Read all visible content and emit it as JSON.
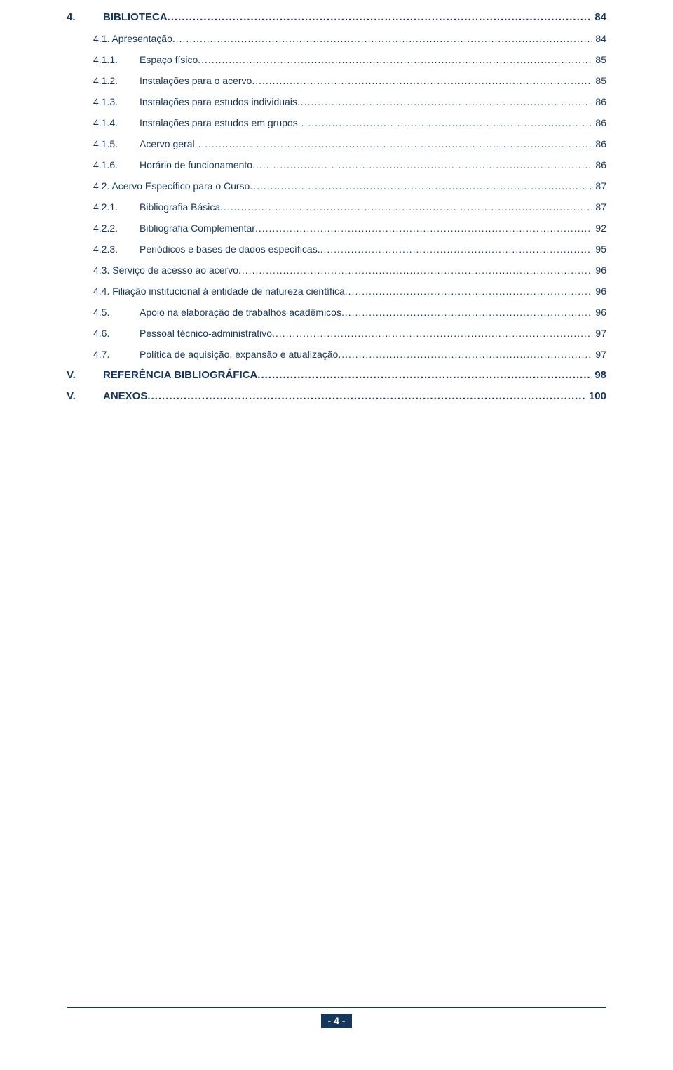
{
  "colors": {
    "text": "#17365d",
    "background": "#ffffff",
    "badge_bg": "#17365d",
    "badge_text": "#ffffff"
  },
  "toc": {
    "l1_biblioteca": {
      "num": "4.",
      "title": "BIBLIOTECA",
      "page": "84"
    },
    "l2_apresentacao": {
      "label": "4.1. Apresentação",
      "page": "84"
    },
    "l3_espaco": {
      "num": "4.1.1.",
      "title": "Espaço físico",
      "page": "85"
    },
    "l3_inst_acervo": {
      "num": "4.1.2.",
      "title": "Instalações para o acervo",
      "page": "85"
    },
    "l3_inst_ind": {
      "num": "4.1.3.",
      "title": "Instalações para estudos individuais",
      "page": "86"
    },
    "l3_inst_grp": {
      "num": "4.1.4.",
      "title": "Instalações para estudos em grupos",
      "page": "86"
    },
    "l3_acervo_g": {
      "num": "4.1.5.",
      "title": "Acervo geral",
      "page": "86"
    },
    "l3_horario": {
      "num": "4.1.6.",
      "title": "Horário de funcionamento",
      "page": "86"
    },
    "l2_acervo_esp": {
      "label": "4.2. Acervo Específico para o Curso",
      "page": "87"
    },
    "l3_bib_bas": {
      "num": "4.2.1.",
      "title": "Bibliografia Básica",
      "page": "87"
    },
    "l3_bib_comp": {
      "num": "4.2.2.",
      "title": "Bibliografia Complementar",
      "page": "92"
    },
    "l3_period": {
      "num": "4.2.3.",
      "title": "Periódicos e bases de dados específicas.",
      "page": "95"
    },
    "l2_servico": {
      "label": "4.3. Serviço de acesso ao acervo",
      "page": "96"
    },
    "l2_filiacao": {
      "label": "4.4. Filiação institucional à entidade de natureza científica",
      "page": "96"
    },
    "l3_apoio": {
      "num": "4.5.",
      "title": "Apoio na elaboração de trabalhos acadêmicos",
      "page": "96"
    },
    "l3_pessoal": {
      "num": "4.6.",
      "title": "Pessoal técnico-administrativo",
      "page": "97"
    },
    "l3_politica": {
      "num": "4.7.",
      "title": "Política de aquisição, expansão e atualização",
      "page": "97"
    },
    "l1_ref": {
      "num": "V.",
      "title": "REFERÊNCIA BIBLIOGRÁFICA",
      "page": "98"
    },
    "l1_anexos": {
      "num": "V.",
      "title": "ANEXOS",
      "page": "100"
    }
  },
  "footer": {
    "page_label": "- 4 -"
  }
}
